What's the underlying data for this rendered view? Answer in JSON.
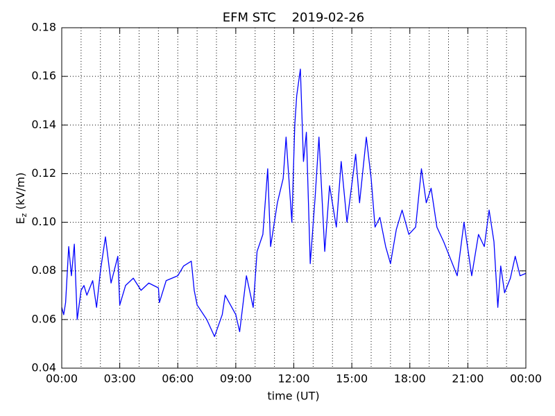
{
  "chart_data": {
    "type": "line",
    "title": "EFM STC    2019-02-26",
    "xlabel": "time (UT)",
    "ylabel": {
      "main": "E",
      "sub": "z",
      "unit": " (kV/m)"
    },
    "x": [
      0,
      0.1,
      0.2,
      0.36,
      0.5,
      0.65,
      0.8,
      1.0,
      1.15,
      1.3,
      1.6,
      1.8,
      2.0,
      2.26,
      2.55,
      2.9,
      3.0,
      3.3,
      3.7,
      4.1,
      4.5,
      5.0,
      5.05,
      5.4,
      6.0,
      6.3,
      6.7,
      6.85,
      7.0,
      7.5,
      7.9,
      8.3,
      8.45,
      9.0,
      9.2,
      9.55,
      9.9,
      10.1,
      10.4,
      10.65,
      10.8,
      11.15,
      11.45,
      11.6,
      11.9,
      12.05,
      12.15,
      12.34,
      12.5,
      12.65,
      12.85,
      13.1,
      13.3,
      13.6,
      13.85,
      14.2,
      14.45,
      14.75,
      15.2,
      15.4,
      15.75,
      16.0,
      16.2,
      16.45,
      16.75,
      17.0,
      17.3,
      17.6,
      17.95,
      18.3,
      18.6,
      18.85,
      19.1,
      19.4,
      19.75,
      20.1,
      20.45,
      20.8,
      21.2,
      21.55,
      21.85,
      22.1,
      22.35,
      22.55,
      22.7,
      22.9,
      23.2,
      23.45,
      23.7,
      24.0
    ],
    "series": [
      {
        "name": "Ez",
        "color": "#0000ff",
        "values": [
          0.065,
          0.062,
          0.067,
          0.09,
          0.078,
          0.091,
          0.06,
          0.072,
          0.074,
          0.07,
          0.076,
          0.065,
          0.08,
          0.094,
          0.075,
          0.086,
          0.066,
          0.074,
          0.077,
          0.072,
          0.075,
          0.073,
          0.067,
          0.076,
          0.078,
          0.082,
          0.084,
          0.072,
          0.066,
          0.06,
          0.053,
          0.062,
          0.07,
          0.062,
          0.055,
          0.078,
          0.065,
          0.088,
          0.095,
          0.122,
          0.09,
          0.108,
          0.118,
          0.135,
          0.1,
          0.14,
          0.152,
          0.163,
          0.125,
          0.137,
          0.083,
          0.11,
          0.135,
          0.088,
          0.115,
          0.098,
          0.125,
          0.1,
          0.128,
          0.108,
          0.135,
          0.118,
          0.098,
          0.102,
          0.09,
          0.083,
          0.097,
          0.105,
          0.095,
          0.098,
          0.122,
          0.108,
          0.114,
          0.098,
          0.092,
          0.085,
          0.078,
          0.1,
          0.078,
          0.095,
          0.09,
          0.105,
          0.092,
          0.065,
          0.082,
          0.071,
          0.077,
          0.086,
          0.078,
          0.079
        ]
      }
    ],
    "xlim": [
      0,
      24
    ],
    "xticks": [
      {
        "value": 0,
        "label": "00:00"
      },
      {
        "value": 3,
        "label": "03:00"
      },
      {
        "value": 6,
        "label": "06:00"
      },
      {
        "value": 9,
        "label": "09:00"
      },
      {
        "value": 12,
        "label": "12:00"
      },
      {
        "value": 15,
        "label": "15:00"
      },
      {
        "value": 18,
        "label": "18:00"
      },
      {
        "value": 21,
        "label": "21:00"
      },
      {
        "value": 24,
        "label": "00:00"
      }
    ],
    "x_minor_ticks": [
      1,
      2,
      4,
      5,
      7,
      8,
      10,
      11,
      13,
      14,
      16,
      17,
      19,
      20,
      22,
      23
    ],
    "ylim": [
      0.04,
      0.18
    ],
    "yticks": [
      {
        "value": 0.04,
        "label": "0.04"
      },
      {
        "value": 0.06,
        "label": "0.06"
      },
      {
        "value": 0.08,
        "label": "0.08"
      },
      {
        "value": 0.1,
        "label": "0.10"
      },
      {
        "value": 0.12,
        "label": "0.12"
      },
      {
        "value": 0.14,
        "label": "0.14"
      },
      {
        "value": 0.16,
        "label": "0.16"
      },
      {
        "value": 0.18,
        "label": "0.18"
      }
    ],
    "grid": true
  }
}
